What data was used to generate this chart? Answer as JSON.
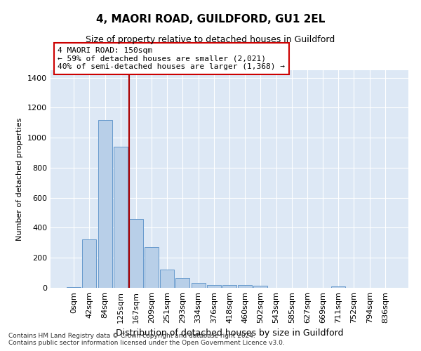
{
  "title": "4, MAORI ROAD, GUILDFORD, GU1 2EL",
  "subtitle": "Size of property relative to detached houses in Guildford",
  "xlabel": "Distribution of detached houses by size in Guildford",
  "ylabel": "Number of detached properties",
  "footnote1": "Contains HM Land Registry data © Crown copyright and database right 2024.",
  "footnote2": "Contains public sector information licensed under the Open Government Licence v3.0.",
  "bar_labels": [
    "0sqm",
    "42sqm",
    "84sqm",
    "125sqm",
    "167sqm",
    "209sqm",
    "251sqm",
    "293sqm",
    "334sqm",
    "376sqm",
    "418sqm",
    "460sqm",
    "502sqm",
    "543sqm",
    "585sqm",
    "627sqm",
    "669sqm",
    "711sqm",
    "752sqm",
    "794sqm",
    "836sqm"
  ],
  "bar_values": [
    5,
    325,
    1120,
    940,
    460,
    270,
    120,
    65,
    35,
    18,
    20,
    20,
    12,
    0,
    0,
    0,
    0,
    8,
    0,
    0,
    0
  ],
  "bar_color": "#b8cfe8",
  "bar_edge_color": "#6699cc",
  "plot_bg_color": "#dde8f5",
  "vline_color": "#aa0000",
  "vline_x_index": 4,
  "annotation_text": "4 MAORI ROAD: 150sqm\n← 59% of detached houses are smaller (2,021)\n40% of semi-detached houses are larger (1,368) →",
  "annotation_box_facecolor": "#ffffff",
  "annotation_box_edgecolor": "#cc0000",
  "ylim": [
    0,
    1450
  ],
  "yticks": [
    0,
    200,
    400,
    600,
    800,
    1000,
    1200,
    1400
  ],
  "title_fontsize": 11,
  "subtitle_fontsize": 9,
  "ylabel_fontsize": 8,
  "xlabel_fontsize": 9,
  "tick_fontsize": 8,
  "annot_fontsize": 8,
  "footnote_fontsize": 6.5
}
